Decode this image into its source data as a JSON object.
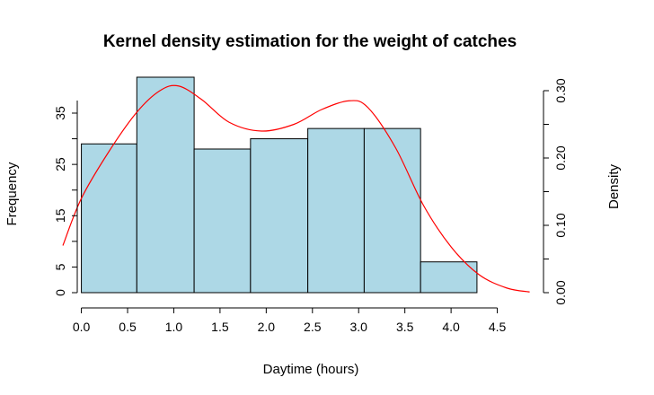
{
  "chart_data": {
    "type": "bar",
    "title": "Kernel density estimation for the weight of catches",
    "xlabel": "Daytime (hours)",
    "ylabel": "Frequency",
    "y2label": "Density",
    "xlim": [
      -0.2,
      5.0
    ],
    "ylim": [
      0,
      42
    ],
    "y2lim": [
      0,
      0.32
    ],
    "x_ticks": [
      "0.0",
      "0.5",
      "1.0",
      "1.5",
      "2.0",
      "2.5",
      "3.0",
      "3.5",
      "4.0",
      "4.5"
    ],
    "y_ticks": [
      "0",
      "5",
      "15",
      "25",
      "35"
    ],
    "y2_ticks": [
      "0.00",
      "0.10",
      "0.20",
      "0.30"
    ],
    "bins": [
      {
        "start": 0.0,
        "end": 0.6,
        "frequency": 29
      },
      {
        "start": 0.6,
        "end": 1.22,
        "frequency": 42
      },
      {
        "start": 1.22,
        "end": 1.83,
        "frequency": 28
      },
      {
        "start": 1.83,
        "end": 2.45,
        "frequency": 30
      },
      {
        "start": 2.45,
        "end": 3.06,
        "frequency": 32
      },
      {
        "start": 3.06,
        "end": 3.67,
        "frequency": 32
      },
      {
        "start": 3.67,
        "end": 4.28,
        "frequency": 6
      }
    ],
    "density": {
      "x": [
        -0.2,
        0.0,
        0.3,
        0.6,
        0.85,
        1.05,
        1.3,
        1.6,
        1.95,
        2.3,
        2.6,
        2.9,
        3.1,
        3.4,
        3.7,
        4.0,
        4.3,
        4.6,
        4.85
      ],
      "y": [
        0.07,
        0.14,
        0.21,
        0.268,
        0.3,
        0.307,
        0.287,
        0.253,
        0.24,
        0.25,
        0.272,
        0.285,
        0.275,
        0.215,
        0.13,
        0.068,
        0.027,
        0.007,
        0.001
      ]
    },
    "bar_color": "#add8e6",
    "density_color": "#ff0000",
    "grid": false
  }
}
